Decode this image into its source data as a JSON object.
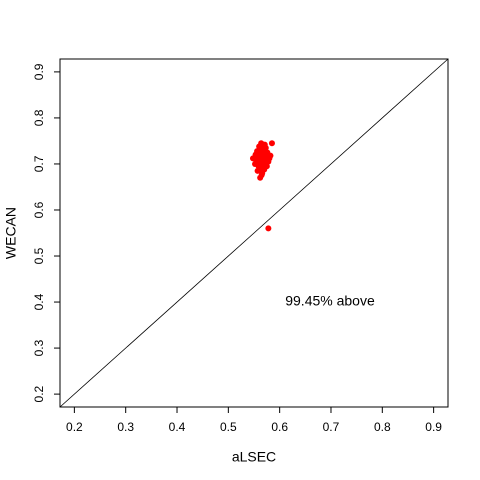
{
  "chart_data": {
    "type": "scatter",
    "x_label": "aLSEC",
    "y_label": "WECAN",
    "annotation": "99.45% above",
    "color": "#ff0000",
    "identity_line": true,
    "xlim": [
      0.172,
      0.928
    ],
    "ylim": [
      0.172,
      0.928
    ],
    "xticks": [
      0.2,
      0.3,
      0.4,
      0.5,
      0.6,
      0.7,
      0.8,
      0.9
    ],
    "yticks": [
      0.2,
      0.3,
      0.4,
      0.5,
      0.6,
      0.7,
      0.8,
      0.9
    ],
    "x": [
      0.555,
      0.558,
      0.56,
      0.562,
      0.564,
      0.566,
      0.568,
      0.57,
      0.572,
      0.574,
      0.559,
      0.561,
      0.563,
      0.565,
      0.567,
      0.569,
      0.571,
      0.573,
      0.556,
      0.578,
      0.58,
      0.582,
      0.585,
      0.548,
      0.552,
      0.557,
      0.562,
      0.566,
      0.57,
      0.575,
      0.56,
      0.564,
      0.568,
      0.572,
      0.563,
      0.567,
      0.576,
      0.553,
      0.571,
      0.565,
      0.561,
      0.578
    ],
    "y": [
      0.705,
      0.712,
      0.725,
      0.735,
      0.745,
      0.74,
      0.73,
      0.72,
      0.715,
      0.71,
      0.695,
      0.7,
      0.69,
      0.705,
      0.715,
      0.698,
      0.725,
      0.735,
      0.728,
      0.705,
      0.712,
      0.718,
      0.745,
      0.712,
      0.7,
      0.685,
      0.67,
      0.68,
      0.688,
      0.695,
      0.738,
      0.728,
      0.708,
      0.702,
      0.718,
      0.692,
      0.725,
      0.72,
      0.742,
      0.676,
      0.71,
      0.56
    ]
  }
}
